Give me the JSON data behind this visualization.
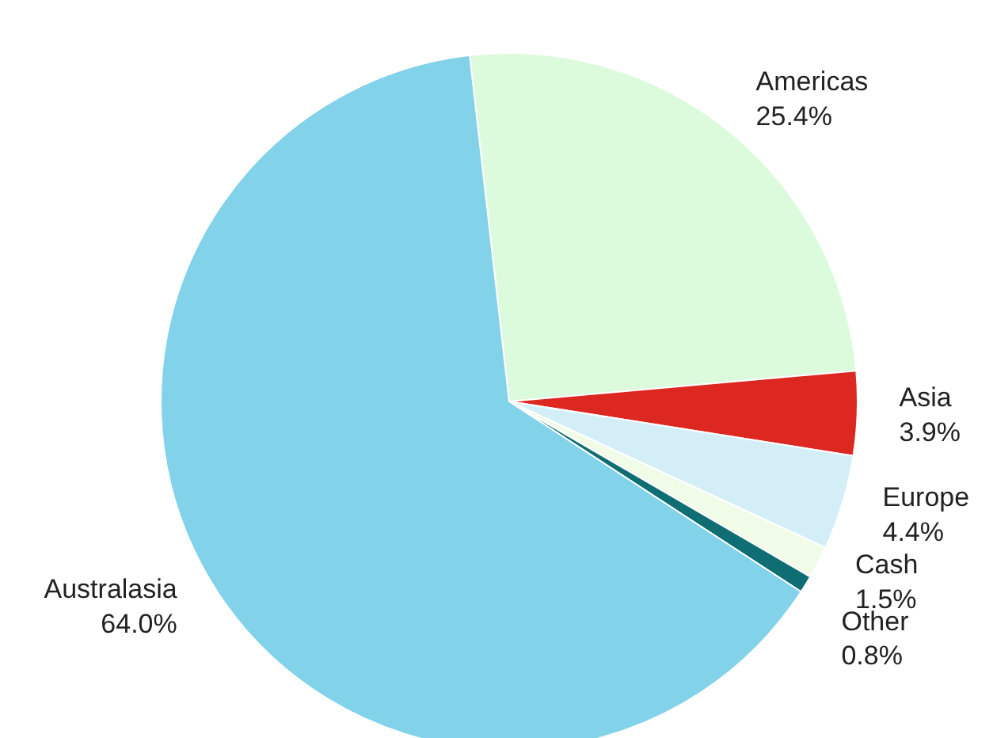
{
  "chart_data": {
    "type": "pie",
    "categories": [
      "Americas",
      "Asia",
      "Europe",
      "Cash",
      "Other",
      "Australasia"
    ],
    "values": [
      25.4,
      3.9,
      4.4,
      1.5,
      0.8,
      64.0
    ],
    "colors": [
      "#dcfadc",
      "#dc2820",
      "#d4eef7",
      "#f0fbe8",
      "#0e6e74",
      "#82d2ea"
    ],
    "value_labels": [
      "25.4%",
      "3.9%",
      "4.4%",
      "1.5%",
      "0.8%",
      "64.0%"
    ]
  }
}
